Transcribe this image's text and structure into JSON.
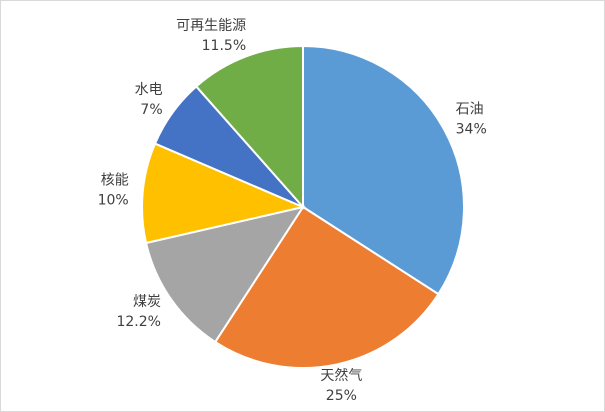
{
  "chart_data": {
    "type": "pie",
    "categories": [
      "石油",
      "天然气",
      "煤炭",
      "核能",
      "水电",
      "可再生能源"
    ],
    "values": [
      34,
      25,
      12.2,
      10,
      7,
      11.5
    ],
    "value_labels": [
      "34%",
      "25%",
      "12.2%",
      "10%",
      "7%",
      "11.5%"
    ],
    "colors": [
      "#5b9bd5",
      "#ed7d31",
      "#a5a5a5",
      "#ffc000",
      "#4472c4",
      "#70ad47"
    ]
  }
}
